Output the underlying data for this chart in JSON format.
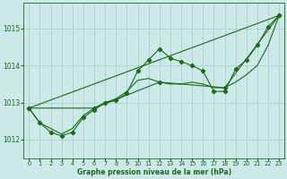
{
  "title": "Graphe pression niveau de la mer (hPa)",
  "background_color": "#cde8e8",
  "grid_color": "#aacccc",
  "line_color": "#1a6b1a",
  "marker_color": "#1a6b1a",
  "xlim": [
    -0.5,
    23.5
  ],
  "ylim": [
    1011.5,
    1015.7
  ],
  "yticks": [
    1012,
    1013,
    1014,
    1015
  ],
  "xticks": [
    0,
    1,
    2,
    3,
    4,
    5,
    6,
    7,
    8,
    9,
    10,
    11,
    12,
    13,
    14,
    15,
    16,
    17,
    18,
    19,
    20,
    21,
    22,
    23
  ],
  "series_main": {
    "x": [
      0,
      1,
      2,
      3,
      4,
      5,
      6,
      7,
      8,
      9,
      10,
      11,
      12,
      13,
      14,
      15,
      16,
      17,
      18,
      19,
      20,
      21,
      22,
      23
    ],
    "y": [
      1012.85,
      1012.45,
      1012.2,
      1012.1,
      1012.2,
      1012.6,
      1012.8,
      1013.0,
      1013.05,
      1013.25,
      1013.85,
      1014.15,
      1014.45,
      1014.2,
      1014.1,
      1014.0,
      1013.85,
      1013.3,
      1013.3,
      1013.9,
      1014.15,
      1014.55,
      1015.05,
      1015.35
    ]
  },
  "series_smooth": {
    "x": [
      0,
      1,
      2,
      3,
      4,
      5,
      6,
      7,
      8,
      9,
      10,
      11,
      12,
      13,
      14,
      15,
      16,
      17,
      18,
      19,
      20,
      21,
      22,
      23
    ],
    "y": [
      1012.85,
      1012.45,
      1012.3,
      1012.15,
      1012.3,
      1012.65,
      1012.85,
      1013.0,
      1013.1,
      1013.3,
      1013.6,
      1013.65,
      1013.55,
      1013.5,
      1013.5,
      1013.55,
      1013.5,
      1013.4,
      1013.4,
      1013.55,
      1013.75,
      1014.0,
      1014.55,
      1015.35
    ]
  },
  "series_trend": {
    "x": [
      0,
      23
    ],
    "y": [
      1012.85,
      1015.35
    ]
  },
  "series_6h": {
    "x": [
      0,
      6,
      12,
      18,
      23
    ],
    "y": [
      1012.85,
      1012.85,
      1013.55,
      1013.4,
      1015.35
    ]
  }
}
